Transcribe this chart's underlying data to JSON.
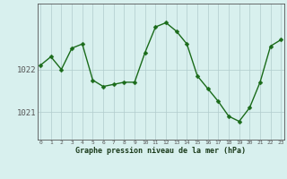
{
  "hours": [
    0,
    1,
    2,
    3,
    4,
    5,
    6,
    7,
    8,
    9,
    10,
    11,
    12,
    13,
    14,
    15,
    16,
    17,
    18,
    19,
    20,
    21,
    22,
    23
  ],
  "pressure": [
    1022.1,
    1022.3,
    1022.0,
    1022.5,
    1022.6,
    1021.75,
    1021.6,
    1021.65,
    1021.7,
    1021.7,
    1022.4,
    1023.0,
    1023.1,
    1022.9,
    1022.6,
    1021.85,
    1021.55,
    1021.25,
    1020.9,
    1020.78,
    1021.1,
    1021.7,
    1022.55,
    1022.7
  ],
  "line_color": "#1a6b1a",
  "marker_color": "#1a6b1a",
  "bg_color": "#d8f0ee",
  "grid_color": "#b0cccc",
  "axis_color": "#555555",
  "xlabel": "Graphe pression niveau de la mer (hPa)",
  "xlabel_color": "#1a3a1a",
  "ylim": [
    1020.35,
    1023.55
  ],
  "yticks": [
    1021,
    1022
  ],
  "marker_size": 2.5,
  "line_width": 1.0
}
